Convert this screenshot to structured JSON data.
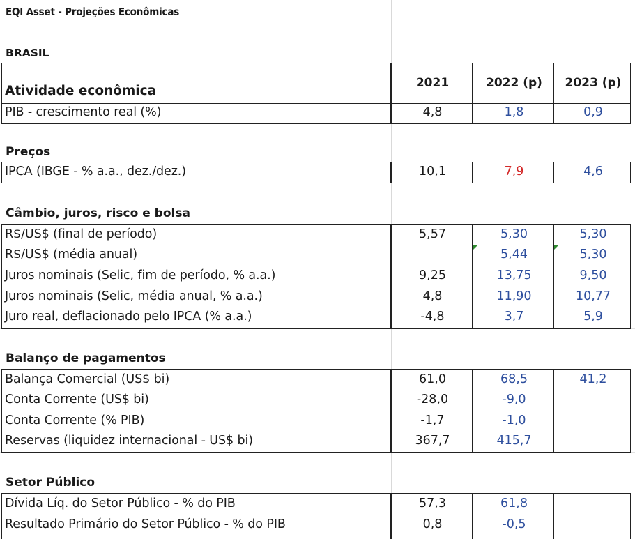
{
  "title": "EQI Asset - Projeções Econômicas",
  "country": "BRASIL",
  "columns": [
    "2021",
    "2022 (p)",
    "2023 (p)"
  ],
  "sections": {
    "atividade": {
      "title": "Atividade econômica",
      "rows": [
        {
          "label": "PIB - crescimento real (%)",
          "v2021": "4,8",
          "v2022": "1,8",
          "v2023": "0,9"
        }
      ]
    },
    "precos": {
      "title": "Preços",
      "rows": [
        {
          "label": "IPCA (IBGE - % a.a., dez./dez.)",
          "v2021": "10,1",
          "v2022": "7,9",
          "v2023": "4,6"
        }
      ]
    },
    "cambio": {
      "title": "Câmbio, juros, risco e bolsa",
      "rows": [
        {
          "label": "R$/US$ (final de período)",
          "v2021": "5,57",
          "v2022": "5,30",
          "v2023": "5,30"
        },
        {
          "label": "R$/US$ (média anual)",
          "v2021": "",
          "v2022": "5,44",
          "v2023": "5,30"
        },
        {
          "label": "Juros nominais (Selic, fim de período, % a.a.)",
          "v2021": "9,25",
          "v2022": "13,75",
          "v2023": "9,50"
        },
        {
          "label": "Juros nominais (Selic, média anual, % a.a.)",
          "v2021": "4,8",
          "v2022": "11,90",
          "v2023": "10,77"
        },
        {
          "label": "Juro real, deflacionado pelo IPCA (% a.a.)",
          "v2021": "-4,8",
          "v2022": "3,7",
          "v2023": "5,9"
        }
      ]
    },
    "balanco": {
      "title": "Balanço de pagamentos",
      "rows": [
        {
          "label": "Balança Comercial (US$ bi)",
          "v2021": "61,0",
          "v2022": "68,5",
          "v2023": "41,2"
        },
        {
          "label": "Conta Corrente (US$ bi)",
          "v2021": "-28,0",
          "v2022": "-9,0",
          "v2023": ""
        },
        {
          "label": "Conta Corrente (% PIB)",
          "v2021": "-1,7",
          "v2022": "-1,0",
          "v2023": ""
        },
        {
          "label": "Reservas (liquidez internacional - US$ bi)",
          "v2021": "367,7",
          "v2022": "415,7",
          "v2023": ""
        }
      ]
    },
    "setor": {
      "title": "Setor Público",
      "rows": [
        {
          "label": "Dívida Líq. do Setor Público - % do PIB",
          "v2021": "57,3",
          "v2022": "61,8",
          "v2023": ""
        },
        {
          "label": "Resultado Primário do Setor Público - % do PIB",
          "v2021": "0,8",
          "v2022": "-0,5",
          "v2023": ""
        }
      ]
    }
  },
  "colors": {
    "projection_blue": "#2e4f9e",
    "highlight_red": "#d42a2a",
    "flag_green": "#2f8a2f"
  }
}
